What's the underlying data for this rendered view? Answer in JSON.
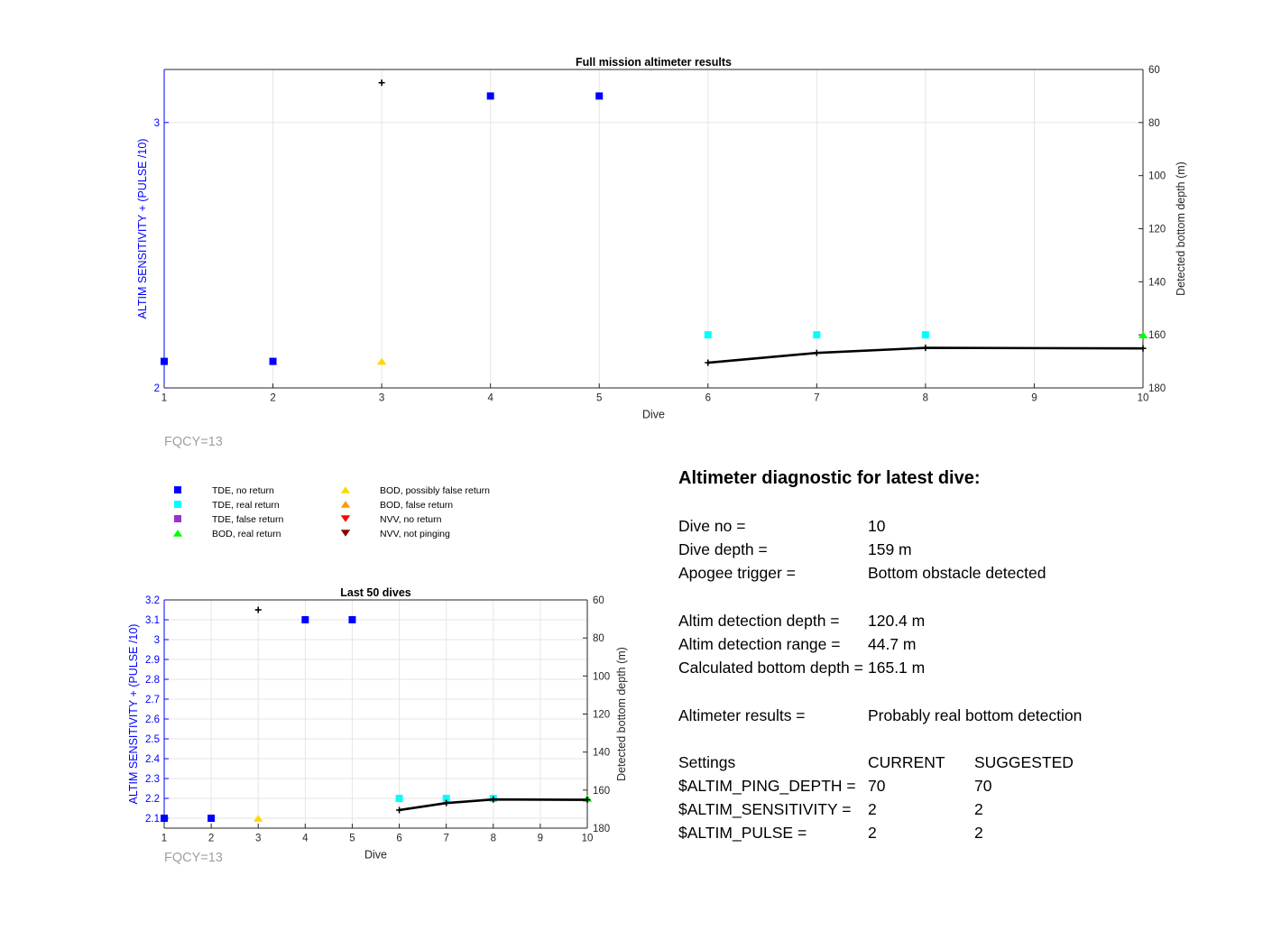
{
  "chart_data": [
    {
      "id": "full",
      "type": "scatter",
      "title": "Full mission altimeter results",
      "xlabel": "Dive",
      "ylabel": "ALTIM SENSITIVITY + (PULSE /10)",
      "y2label": "Detected bottom depth (m)",
      "xlim": [
        1,
        10
      ],
      "ylim": [
        2,
        3.2
      ],
      "y2lim": [
        60,
        180
      ],
      "y2_reversed": true,
      "xticks": [
        1,
        2,
        3,
        4,
        5,
        6,
        7,
        8,
        9,
        10
      ],
      "yticks": [
        2,
        3
      ],
      "y2ticks": [
        60,
        80,
        100,
        120,
        140,
        160,
        180
      ],
      "grid": "x",
      "footnote": "FQCY=13",
      "colors": {
        "axis_left": "#0000ff",
        "grid": "#e6e6e6"
      },
      "series": [
        {
          "name": "TDE, no return",
          "marker": "square",
          "color": "#0000ff",
          "axis": "left",
          "x": [
            1,
            2,
            4,
            5
          ],
          "y": [
            2.1,
            2.1,
            3.1,
            3.1
          ]
        },
        {
          "name": "TDE, real return",
          "marker": "square",
          "color": "#00ffff",
          "axis": "left",
          "x": [
            6,
            7,
            8
          ],
          "y": [
            2.2,
            2.2,
            2.2
          ]
        },
        {
          "name": "BOD, real return",
          "marker": "triangle-up",
          "color": "#00ff00",
          "axis": "left",
          "x": [
            10
          ],
          "y": [
            2.2
          ]
        },
        {
          "name": "BOD, possibly false return",
          "marker": "triangle-up",
          "color": "#ffd700",
          "axis": "left",
          "x": [
            3
          ],
          "y": [
            2.1
          ]
        },
        {
          "name": "",
          "marker": "plus",
          "color": "#000000",
          "axis": "left",
          "x": [
            3
          ],
          "y": [
            3.15
          ]
        },
        {
          "name": "",
          "marker": "plus-line",
          "color": "#000000",
          "axis": "right",
          "x": [
            6,
            7,
            8,
            10
          ],
          "y": [
            170.5,
            166.8,
            164.9,
            165.1
          ]
        }
      ]
    },
    {
      "id": "last50",
      "type": "scatter",
      "title": "Last 50 dives",
      "xlabel": "Dive",
      "ylabel": "ALTIM SENSITIVITY + (PULSE /10)",
      "y2label": "Detected bottom depth (m)",
      "xlim": [
        1,
        10
      ],
      "ylim": [
        2.05,
        3.2
      ],
      "y2lim": [
        60,
        180
      ],
      "y2_reversed": true,
      "xticks": [
        1,
        2,
        3,
        4,
        5,
        6,
        7,
        8,
        9,
        10
      ],
      "yticks": [
        2.1,
        2.2,
        2.3,
        2.4,
        2.5,
        2.6,
        2.7,
        2.8,
        2.9,
        3,
        3.1,
        3.2
      ],
      "y2ticks": [
        60,
        80,
        100,
        120,
        140,
        160,
        180
      ],
      "grid": "xy",
      "footnote": "FQCY=13",
      "colors": {
        "axis_left": "#0000ff",
        "grid": "#e6e6e6"
      },
      "series": [
        {
          "name": "TDE, no return",
          "marker": "square",
          "color": "#0000ff",
          "axis": "left",
          "x": [
            1,
            2,
            4,
            5
          ],
          "y": [
            2.1,
            2.1,
            3.1,
            3.1
          ]
        },
        {
          "name": "TDE, real return",
          "marker": "square",
          "color": "#00ffff",
          "axis": "left",
          "x": [
            6,
            7,
            8
          ],
          "y": [
            2.2,
            2.2,
            2.2
          ]
        },
        {
          "name": "BOD, real return",
          "marker": "triangle-up",
          "color": "#00ff00",
          "axis": "left",
          "x": [
            10
          ],
          "y": [
            2.2
          ]
        },
        {
          "name": "BOD, possibly false return",
          "marker": "triangle-up",
          "color": "#ffd700",
          "axis": "left",
          "x": [
            3
          ],
          "y": [
            2.1
          ]
        },
        {
          "name": "",
          "marker": "plus",
          "color": "#000000",
          "axis": "left",
          "x": [
            3
          ],
          "y": [
            3.15
          ]
        },
        {
          "name": "",
          "marker": "plus-line",
          "color": "#000000",
          "axis": "right",
          "x": [
            6,
            7,
            8,
            10
          ],
          "y": [
            170.5,
            166.8,
            164.9,
            165.1
          ]
        }
      ]
    }
  ],
  "legend": {
    "entries": [
      {
        "label": "TDE, no return",
        "marker": "square",
        "color": "#0000ff"
      },
      {
        "label": "TDE, real return",
        "marker": "square",
        "color": "#00ffff"
      },
      {
        "label": "TDE, false return",
        "marker": "square",
        "color": "#9932cc"
      },
      {
        "label": "BOD, real return",
        "marker": "triangle-up",
        "color": "#00ff00"
      },
      {
        "label": "BOD, possibly false return",
        "marker": "triangle-up",
        "color": "#ffd700"
      },
      {
        "label": "BOD, false return",
        "marker": "triangle-up",
        "color": "#ff9900"
      },
      {
        "label": "NVV, no return",
        "marker": "triangle-down",
        "color": "#ff0000"
      },
      {
        "label": "NVV, not pinging",
        "marker": "triangle-down",
        "color": "#8b0000"
      }
    ]
  },
  "diagnostic": {
    "title": "Altimeter diagnostic for latest dive:",
    "dive_no_label": "Dive no =",
    "dive_no": "10",
    "dive_depth_label": "Dive depth =",
    "dive_depth": "159 m",
    "apogee_label": "Apogee trigger =",
    "apogee": "Bottom obstacle detected",
    "det_depth_label": "Altim detection depth =",
    "det_depth": "120.4 m",
    "det_range_label": "Altim detection range =",
    "det_range": "44.7 m",
    "calc_depth_label": "Calculated bottom depth =",
    "calc_depth": "165.1 m",
    "results_label": "Altimeter results =",
    "results": "Probably real bottom detection",
    "settings_label": "Settings",
    "current_label": "CURRENT",
    "suggested_label": "SUGGESTED",
    "ping_label": "$ALTIM_PING_DEPTH =",
    "ping_current": "70",
    "ping_suggested": "70",
    "sens_label": "$ALTIM_SENSITIVITY =",
    "sens_current": "2",
    "sens_suggested": "2",
    "pulse_label": "$ALTIM_PULSE =",
    "pulse_current": "2",
    "pulse_suggested": "2"
  }
}
